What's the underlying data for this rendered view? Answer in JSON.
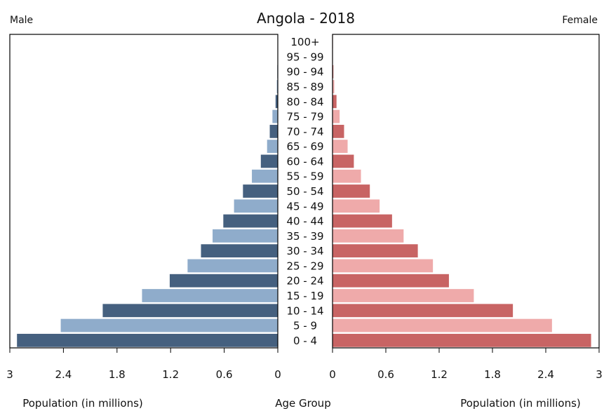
{
  "chart_data": {
    "type": "bar",
    "title": "Angola - 2018",
    "left_label": "Male",
    "right_label": "Female",
    "xlabel_left": "Population (in millions)",
    "xlabel_center": "Age Group",
    "xlabel_right": "Population (in millions)",
    "xlim": [
      0,
      3
    ],
    "ticks": [
      "3",
      "2.4",
      "1.8",
      "1.2",
      "0.6",
      "0"
    ],
    "ticks_right": [
      "0",
      "0.6",
      "1.2",
      "1.8",
      "2.4",
      "3"
    ],
    "categories": [
      "100+",
      "95 - 99",
      "90 - 94",
      "85 - 89",
      "80 - 84",
      "75 - 79",
      "70 - 74",
      "65 - 69",
      "60 - 64",
      "55 - 59",
      "50 - 54",
      "45 - 49",
      "40 - 44",
      "35 - 39",
      "30 - 34",
      "25 - 29",
      "20 - 24",
      "15 - 19",
      "10 - 14",
      "5 - 9",
      "0 - 4"
    ],
    "series": [
      {
        "name": "Male",
        "values": [
          0.001,
          0.002,
          0.005,
          0.011,
          0.025,
          0.06,
          0.09,
          0.12,
          0.19,
          0.29,
          0.39,
          0.49,
          0.61,
          0.73,
          0.86,
          1.01,
          1.21,
          1.52,
          1.96,
          2.43,
          2.92
        ]
      },
      {
        "name": "Female",
        "values": [
          0.002,
          0.004,
          0.01,
          0.02,
          0.045,
          0.08,
          0.13,
          0.17,
          0.24,
          0.32,
          0.42,
          0.53,
          0.67,
          0.8,
          0.96,
          1.13,
          1.31,
          1.59,
          2.03,
          2.47,
          2.91
        ]
      }
    ],
    "colors": {
      "male_dark": "#45607f",
      "male_light": "#8faccb",
      "female_dark": "#c86464",
      "female_light": "#efaaaa"
    },
    "grid": false
  }
}
